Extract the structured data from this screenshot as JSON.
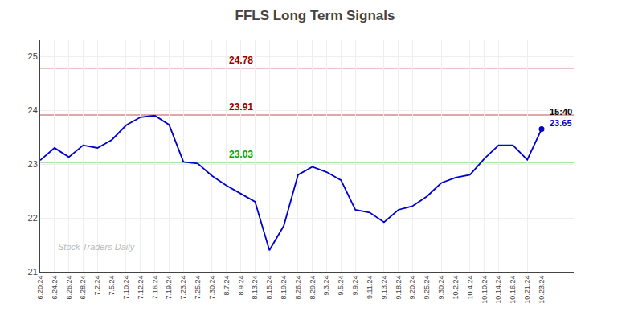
{
  "chart_data": {
    "type": "line",
    "title": "FFLS Long Term Signals",
    "categories": [
      "6.20.24",
      "6.24.24",
      "6.26.24",
      "6.28.24",
      "7.2.24",
      "7.5.24",
      "7.10.24",
      "7.12.24",
      "7.16.24",
      "7.19.24",
      "7.23.24",
      "7.25.24",
      "7.30.24",
      "8.7.24",
      "8.9.24",
      "8.13.24",
      "8.15.24",
      "8.19.24",
      "8.26.24",
      "8.29.24",
      "9.3.24",
      "9.5.24",
      "9.9.24",
      "9.11.24",
      "9.13.24",
      "9.18.24",
      "9.20.24",
      "9.25.24",
      "9.30.24",
      "10.2.24",
      "10.4.24",
      "10.10.24",
      "10.14.24",
      "10.16.24",
      "10.21.24",
      "10.23.24"
    ],
    "values": [
      23.07,
      23.3,
      23.13,
      23.35,
      23.3,
      23.45,
      23.72,
      23.87,
      23.9,
      23.73,
      23.04,
      23.01,
      22.78,
      22.6,
      22.45,
      22.3,
      21.4,
      21.85,
      22.8,
      22.95,
      22.85,
      22.7,
      22.15,
      22.1,
      21.92,
      22.15,
      22.22,
      22.4,
      22.65,
      22.75,
      22.8,
      23.1,
      23.35,
      23.35,
      23.08,
      23.65
    ],
    "color": "#0000cc",
    "ylim": [
      21.0,
      25.3
    ],
    "yticks": [
      21,
      22,
      23,
      24,
      25
    ],
    "grid": true,
    "reference_lines": [
      {
        "value": 24.78,
        "label": "24.78",
        "color": "#990000"
      },
      {
        "value": 23.91,
        "label": "23.91",
        "color": "#990000"
      },
      {
        "value": 23.03,
        "label": "23.03",
        "color": "#00aa00"
      }
    ],
    "annotations": [
      {
        "x": "10.23.24",
        "y": 23.65,
        "text": "15:40"
      },
      {
        "x": "10.23.24",
        "y": 23.65,
        "text": "23.65",
        "color": "#0000cc"
      }
    ],
    "watermark": "Stock Traders Daily"
  }
}
